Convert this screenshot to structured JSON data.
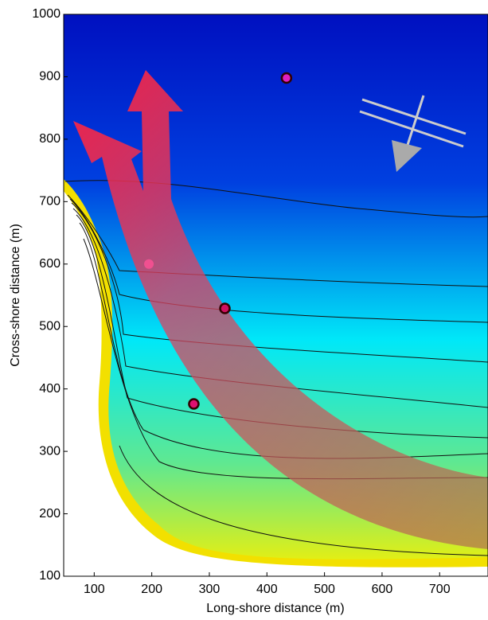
{
  "chart_data": {
    "type": "scatter",
    "xlabel": "Long-shore distance (m)",
    "ylabel": "Cross-shore distance (m)",
    "x": [
      434,
      327,
      273,
      195
    ],
    "values": [
      898,
      529,
      376,
      600
    ],
    "colors": [
      "#e020c0",
      "#d01060",
      "#e01070",
      "#f05090"
    ],
    "xlim": [
      47,
      784
    ],
    "xticks": [
      100,
      200,
      300,
      400,
      500,
      600,
      700
    ],
    "ylim": [
      100,
      1000
    ],
    "yticks": [
      100,
      200,
      300,
      400,
      500,
      600,
      700,
      800,
      900,
      1000
    ]
  }
}
